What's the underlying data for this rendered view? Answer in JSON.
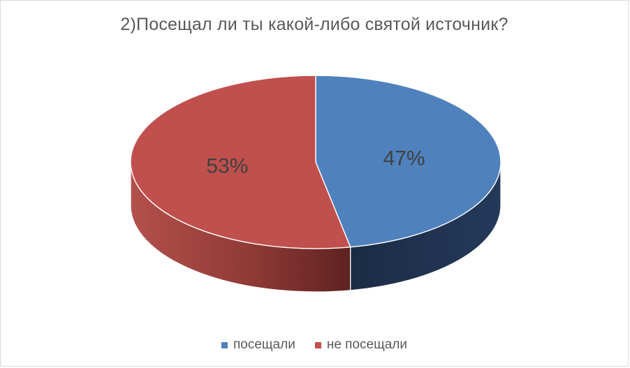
{
  "chart_data": {
    "type": "pie",
    "title": "2)Посещал ли ты какой-либо святой источник?",
    "slices": [
      {
        "label": "посещали",
        "value": 47,
        "data_label": "47%",
        "color": "#4f81bd",
        "side_color": "#1f3452"
      },
      {
        "label": "не посещали",
        "value": 53,
        "data_label": "53%",
        "color": "#c0504d",
        "side_color": "#8c3430"
      }
    ],
    "three_d": true,
    "legend_position": "bottom"
  }
}
